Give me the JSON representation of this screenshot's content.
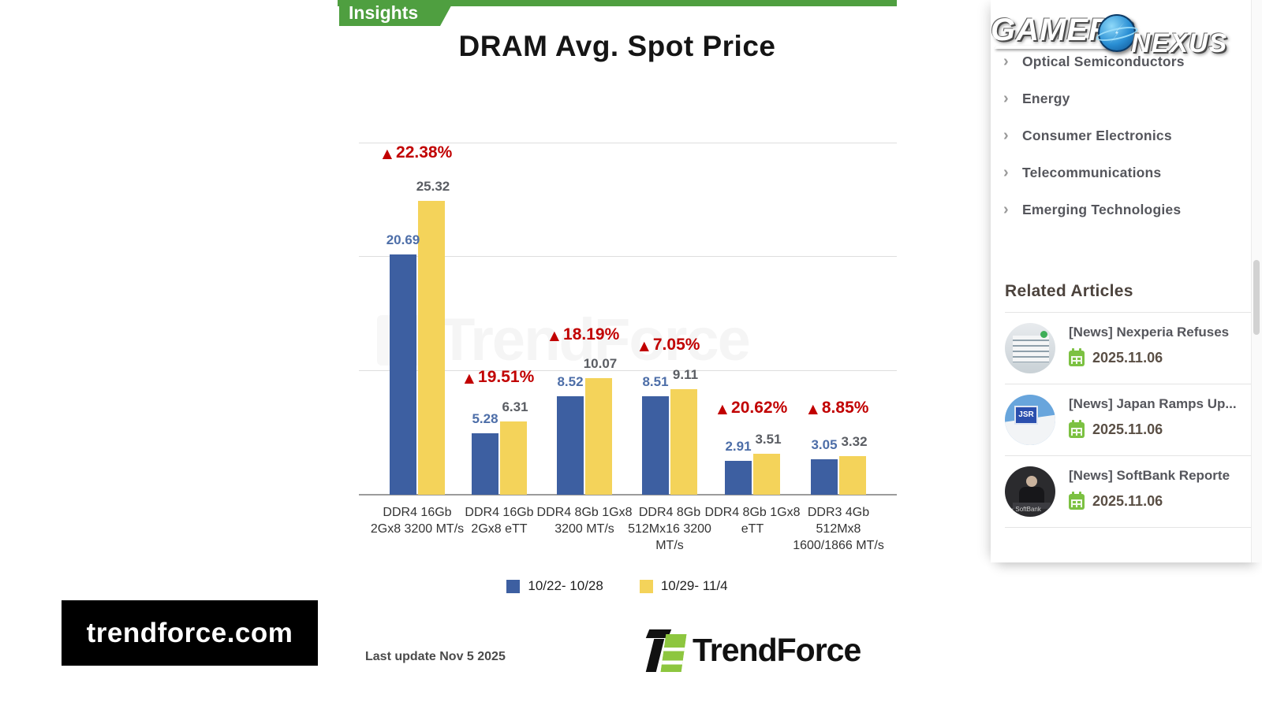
{
  "chart": {
    "badge": "Insights",
    "title": "DRAM Avg. Spot Price",
    "watermark": "TrendForce",
    "last_update": "Last update Nov 5  2025",
    "footer_logo": "TrendForce",
    "site_overlay": "trendforce.com"
  },
  "chart_data": {
    "type": "bar",
    "title": "DRAM Avg. Spot Price",
    "categories": [
      "DDR4 16Gb 2Gx8 3200 MT/s",
      "DDR4 16Gb 2Gx8 eTT",
      "DDR4 8Gb 1Gx8 3200 MT/s",
      "DDR4 8Gb 512Mx16 3200 MT/s",
      "DDR4 8Gb 1Gx8 eTT",
      "DDR3 4Gb 512Mx8 1600/1866 MT/s"
    ],
    "series": [
      {
        "name": "10/22- 10/28",
        "color": "#3d5fa1",
        "values": [
          20.69,
          5.28,
          8.52,
          8.51,
          2.91,
          3.05
        ]
      },
      {
        "name": "10/29- 11/4",
        "color": "#f4d35a",
        "values": [
          25.32,
          6.31,
          10.07,
          9.11,
          3.51,
          3.32
        ]
      }
    ],
    "change_labels": [
      "22.38%",
      "19.51%",
      "18.19%",
      "7.05%",
      "20.62%",
      "8.85%"
    ],
    "change_direction": "up",
    "ylim": [
      0,
      30.4
    ],
    "grid": true,
    "legend_position": "bottom",
    "value_label_colors": {
      "series1": "#4d6ea8",
      "series2": "#5a5d63"
    },
    "change_color": "#c10000"
  },
  "sidebar": {
    "brand": {
      "left": "GAMERS",
      "right": "NEXUS"
    },
    "nav": [
      {
        "label": "Optical Semiconductors"
      },
      {
        "label": "Energy"
      },
      {
        "label": "Consumer Electronics"
      },
      {
        "label": "Telecommunications"
      },
      {
        "label": "Emerging Technologies"
      }
    ],
    "related": {
      "heading": "Related Articles",
      "articles": [
        {
          "title": "[News] Nexperia Refuses",
          "date": "2025.11.06"
        },
        {
          "title": "[News] Japan Ramps Up...",
          "date": "2025.11.06"
        },
        {
          "title": "[News] SoftBank Reporte",
          "date": "2025.11.06"
        }
      ]
    }
  }
}
